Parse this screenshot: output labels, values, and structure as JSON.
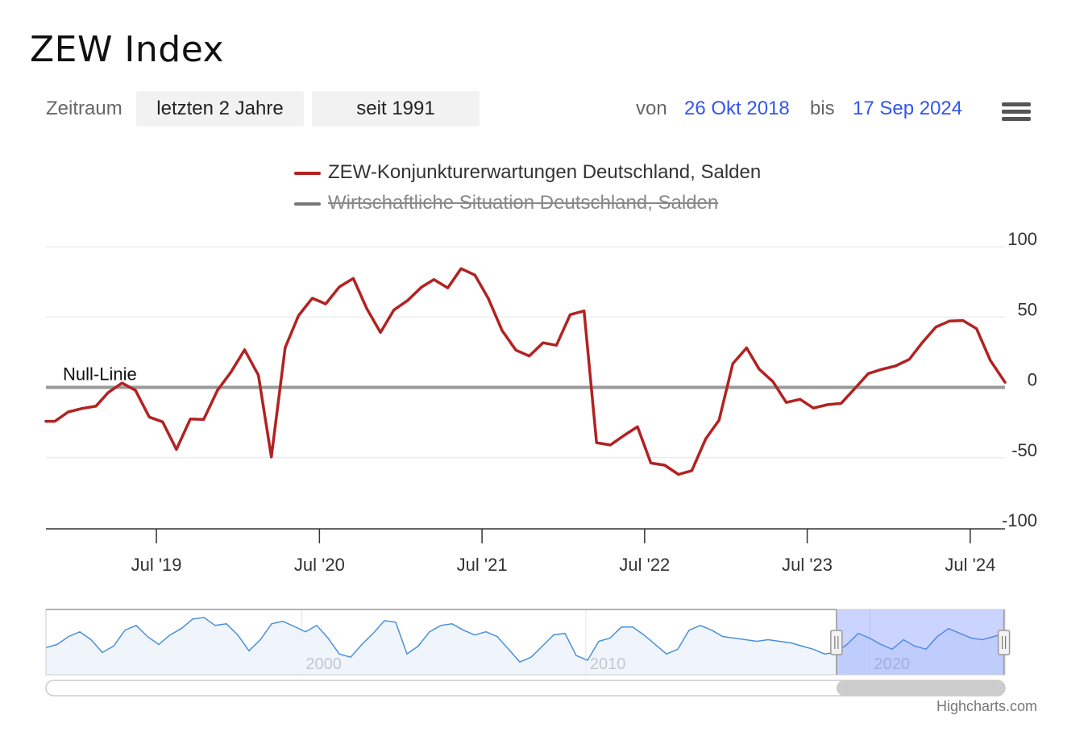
{
  "title": "ZEW Index",
  "toolbar": {
    "period_label": "Zeitraum",
    "buttons": [
      "letzten 2 Jahre",
      "seit 1991"
    ],
    "from_label": "von",
    "from_value": "26 Okt 2018",
    "to_label": "bis",
    "to_value": "17 Sep 2024"
  },
  "legend": [
    {
      "label": "ZEW-Konjunkturerwartungen Deutschland, Salden",
      "color": "#b22222",
      "visible": true
    },
    {
      "label": "Wirtschaftliche Situation Deutschland, Salden",
      "color": "#777777",
      "visible": false
    }
  ],
  "credits": "Highcharts.com",
  "chart_data": {
    "type": "line",
    "x_ticks": [
      "Jul '19",
      "Jul '20",
      "Jul '21",
      "Jul '22",
      "Jul '23",
      "Jul '24"
    ],
    "y_ticks": [
      "100",
      "50",
      "0",
      "-50",
      "-100"
    ],
    "ylim": [
      -100,
      100
    ],
    "xlim": [
      "2018-10-26",
      "2024-09-17"
    ],
    "plot_line": {
      "value": 0,
      "label": "Null-Linie"
    },
    "series": [
      {
        "name": "ZEW-Konjunkturerwartungen Deutschland, Salden",
        "color": "#b22222",
        "x": [
          "2018-10-26",
          "2018-11-15",
          "2018-12-15",
          "2019-01-15",
          "2019-02-15",
          "2019-03-15",
          "2019-04-15",
          "2019-05-15",
          "2019-06-15",
          "2019-07-15",
          "2019-08-15",
          "2019-09-15",
          "2019-10-15",
          "2019-11-15",
          "2019-12-15",
          "2020-01-15",
          "2020-02-15",
          "2020-03-15",
          "2020-04-15",
          "2020-05-15",
          "2020-06-15",
          "2020-07-15",
          "2020-08-15",
          "2020-09-15",
          "2020-10-15",
          "2020-11-15",
          "2020-12-15",
          "2021-01-15",
          "2021-02-15",
          "2021-03-15",
          "2021-04-15",
          "2021-05-15",
          "2021-06-15",
          "2021-07-15",
          "2021-08-15",
          "2021-09-15",
          "2021-10-15",
          "2021-11-15",
          "2021-12-15",
          "2022-01-15",
          "2022-02-15",
          "2022-03-15",
          "2022-04-15",
          "2022-05-15",
          "2022-06-15",
          "2022-07-15",
          "2022-08-15",
          "2022-09-15",
          "2022-10-15",
          "2022-11-15",
          "2022-12-15",
          "2023-01-15",
          "2023-02-15",
          "2023-03-15",
          "2023-04-15",
          "2023-05-15",
          "2023-06-15",
          "2023-07-15",
          "2023-08-15",
          "2023-09-15",
          "2023-10-15",
          "2023-11-15",
          "2023-12-15",
          "2024-01-15",
          "2024-02-15",
          "2024-03-15",
          "2024-04-15",
          "2024-05-15",
          "2024-06-15",
          "2024-07-15",
          "2024-08-15",
          "2024-09-17"
        ],
        "values": [
          -24.1,
          -24.1,
          -17.5,
          -15.0,
          -13.4,
          -3.6,
          3.1,
          -2.1,
          -21.1,
          -24.5,
          -44.1,
          -22.5,
          -22.8,
          -2.1,
          10.7,
          26.7,
          8.7,
          -49.5,
          28.2,
          51.0,
          63.4,
          59.3,
          71.5,
          77.4,
          56.1,
          39.0,
          55.0,
          61.8,
          71.2,
          76.6,
          70.7,
          84.4,
          79.8,
          63.3,
          40.4,
          26.5,
          22.3,
          31.7,
          29.9,
          51.7,
          54.3,
          -39.3,
          -41.0,
          -34.3,
          -28.0,
          -53.8,
          -55.3,
          -61.9,
          -59.2,
          -36.7,
          -23.3,
          16.9,
          28.1,
          13.0,
          4.1,
          -10.7,
          -8.5,
          -14.7,
          -12.3,
          -11.4,
          -1.1,
          9.8,
          12.8,
          15.2,
          19.9,
          31.7,
          42.9,
          47.1,
          47.5,
          41.8,
          19.2,
          3.6
        ]
      }
    ],
    "navigator": {
      "x_labels": [
        "2000",
        "2010",
        "2020"
      ],
      "x_range": [
        1991,
        2024.75
      ],
      "selection": [
        "2018-10-26",
        "2024-09-17"
      ],
      "series": [
        -15,
        -5,
        20,
        35,
        10,
        -30,
        -10,
        40,
        55,
        20,
        -5,
        25,
        45,
        75,
        80,
        55,
        60,
        25,
        -25,
        10,
        60,
        68,
        52,
        35,
        55,
        15,
        -35,
        -45,
        -5,
        30,
        70,
        65,
        -35,
        -10,
        35,
        55,
        60,
        40,
        25,
        35,
        20,
        -20,
        -60,
        -45,
        -10,
        25,
        30,
        -40,
        -55,
        5,
        15,
        50,
        50,
        25,
        -5,
        -35,
        -20,
        40,
        55,
        40,
        20,
        15,
        10,
        5,
        10,
        5,
        0,
        -10,
        -20,
        -35,
        -30,
        -5,
        30,
        15,
        -5,
        -20,
        10,
        -10,
        -20,
        20,
        45,
        30,
        15,
        10,
        20,
        30
      ]
    }
  }
}
